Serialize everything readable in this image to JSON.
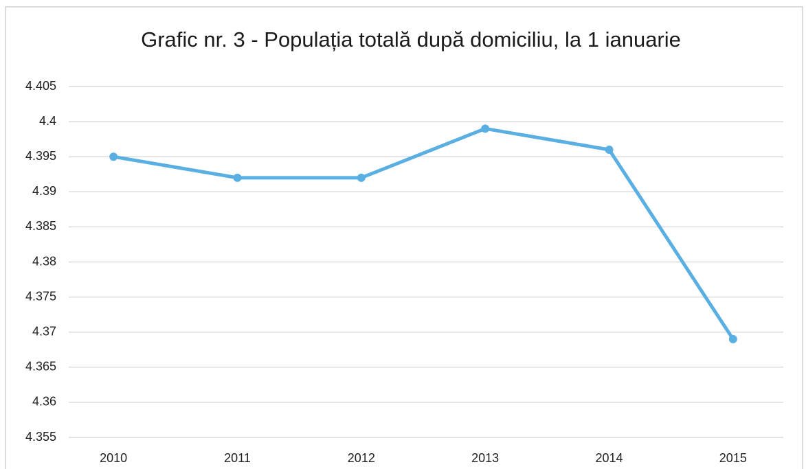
{
  "chart_data": {
    "type": "line",
    "title": "Grafic nr. 3 - Populația totală după domiciliu, la 1 ianuarie",
    "categories": [
      "2010",
      "2011",
      "2012",
      "2013",
      "2014",
      "2015"
    ],
    "values": [
      4.395,
      4.392,
      4.392,
      4.399,
      4.396,
      4.369
    ],
    "color": "#5aafe2",
    "ylim": [
      4.355,
      4.405
    ],
    "yticks": [
      4.355,
      4.36,
      4.365,
      4.37,
      4.375,
      4.38,
      4.385,
      4.39,
      4.395,
      4.4,
      4.405
    ],
    "grid": true
  }
}
